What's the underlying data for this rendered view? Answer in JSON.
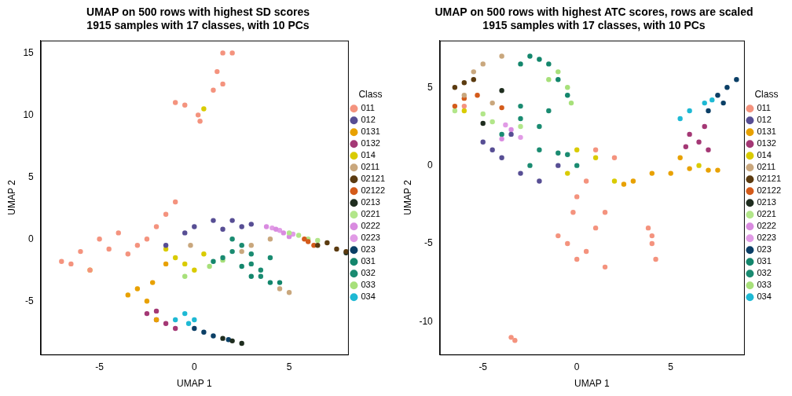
{
  "chart_data": [
    {
      "type": "scatter",
      "title": "UMAP on 500 rows with highest SD scores",
      "subtitle": "1915 samples with 17 classes, with 10 PCs",
      "x_label": "UMAP 1",
      "y_label": "UMAP 2",
      "legend": "right",
      "legend_title": "Class",
      "grid": false,
      "marker": "circle",
      "xlim": [
        -8.1,
        8.1
      ],
      "xticks": [
        -5,
        0,
        5
      ],
      "ylim": [
        -9.3,
        16.0
      ],
      "yticks": [
        -5,
        0,
        5,
        10,
        15
      ],
      "series": [
        {
          "name": "011",
          "color": "#F4937E",
          "values": [
            [
              1.5,
              15
            ],
            [
              2,
              15
            ],
            [
              1.2,
              13.5
            ],
            [
              1.5,
              12.5
            ],
            [
              1,
              12
            ],
            [
              -1,
              11
            ],
            [
              -0.5,
              10.8
            ],
            [
              0.2,
              10
            ],
            [
              0.3,
              9.5
            ],
            [
              -5,
              0
            ],
            [
              -4,
              0.5
            ],
            [
              -3,
              -0.5
            ],
            [
              -4.5,
              -0.8
            ],
            [
              -6,
              -1
            ],
            [
              -7,
              -1.8
            ],
            [
              -6.5,
              -2
            ],
            [
              -5.5,
              -2.5
            ],
            [
              -2,
              1
            ],
            [
              -2.5,
              0
            ],
            [
              -1.5,
              2
            ],
            [
              -1,
              3
            ],
            [
              -3.5,
              -1.2
            ]
          ]
        },
        {
          "name": "012",
          "color": "#574E94",
          "values": [
            [
              0,
              1
            ],
            [
              1,
              1.5
            ],
            [
              2,
              1.5
            ],
            [
              3,
              1.2
            ],
            [
              -0.5,
              0.5
            ],
            [
              1.5,
              0.8
            ],
            [
              2.5,
              1.0
            ],
            [
              -1.5,
              -0.5
            ]
          ]
        },
        {
          "name": "0131",
          "color": "#E8A100",
          "values": [
            [
              -3.5,
              -4.5
            ],
            [
              -3,
              -4
            ],
            [
              -2.5,
              -5
            ],
            [
              -2.2,
              -3.5
            ],
            [
              -1.5,
              -2
            ],
            [
              -2,
              -6.5
            ]
          ]
        },
        {
          "name": "0132",
          "color": "#A43875",
          "values": [
            [
              -2.5,
              -6
            ],
            [
              -2,
              -6.5
            ],
            [
              -1.5,
              -6.8
            ],
            [
              -1,
              -7.2
            ],
            [
              -2,
              -5.8
            ]
          ]
        },
        {
          "name": "014",
          "color": "#D9CB00",
          "values": [
            [
              -1,
              -1.5
            ],
            [
              -0.5,
              -2
            ],
            [
              0,
              -2.5
            ],
            [
              0.5,
              -1.2
            ],
            [
              -1.5,
              -0.8
            ],
            [
              -5.5,
              -2.5
            ],
            [
              0.5,
              10.5
            ]
          ]
        },
        {
          "name": "0211",
          "color": "#C9A77D",
          "values": [
            [
              4,
              0
            ],
            [
              3,
              -0.5
            ],
            [
              5,
              -4.3
            ],
            [
              4.5,
              -4
            ],
            [
              2.5,
              -1
            ],
            [
              -0.2,
              -0.5
            ]
          ]
        },
        {
          "name": "02121",
          "color": "#5B3B10",
          "values": [
            [
              7.5,
              -0.8
            ],
            [
              8,
              -1
            ],
            [
              6.5,
              -0.5
            ],
            [
              7,
              -0.3
            ]
          ]
        },
        {
          "name": "02122",
          "color": "#D45B1A",
          "values": [
            [
              6,
              -0.2
            ],
            [
              6.3,
              -0.5
            ],
            [
              5.8,
              0
            ]
          ]
        },
        {
          "name": "0213",
          "color": "#1F2D1F",
          "values": [
            [
              2,
              -8.2
            ],
            [
              2.5,
              -8.4
            ],
            [
              1.5,
              -8
            ],
            [
              8,
              -1.1
            ]
          ]
        },
        {
          "name": "0221",
          "color": "#B2E68A",
          "values": [
            [
              6,
              0
            ],
            [
              5.5,
              0.3
            ],
            [
              5,
              0.5
            ],
            [
              6.5,
              -0.1
            ]
          ]
        },
        {
          "name": "0222",
          "color": "#D98BE0",
          "values": [
            [
              4.3,
              0.8
            ],
            [
              4.7,
              0.5
            ],
            [
              3.8,
              1
            ],
            [
              5,
              0.2
            ]
          ]
        },
        {
          "name": "0223",
          "color": "#E19BE6",
          "values": [
            [
              4.1,
              0.9
            ],
            [
              4.5,
              0.7
            ],
            [
              5.2,
              0.4
            ]
          ]
        },
        {
          "name": "023",
          "color": "#0B3F66",
          "values": [
            [
              0.5,
              -7.5
            ],
            [
              1,
              -7.8
            ],
            [
              0,
              -7.2
            ],
            [
              1.8,
              -8.1
            ]
          ]
        },
        {
          "name": "031",
          "color": "#13866C",
          "values": [
            [
              3,
              -3
            ],
            [
              4,
              -3.5
            ],
            [
              2.5,
              -2.2
            ],
            [
              4.5,
              -3.5
            ],
            [
              1,
              -1.8
            ]
          ]
        },
        {
          "name": "032",
          "color": "#1A8B71",
          "values": [
            [
              3.5,
              -2.5
            ],
            [
              4,
              -1.5
            ],
            [
              2,
              0
            ],
            [
              3,
              -1.2
            ],
            [
              2,
              -1
            ],
            [
              3,
              -2
            ],
            [
              3.5,
              -3
            ],
            [
              1.5,
              -1.5
            ],
            [
              2.5,
              -0.5
            ]
          ]
        },
        {
          "name": "033",
          "color": "#A7E07A",
          "values": [
            [
              1.5,
              -1.7
            ],
            [
              0.8,
              -2.2
            ],
            [
              -0.5,
              -3
            ]
          ]
        },
        {
          "name": "034",
          "color": "#1EB9D4",
          "values": [
            [
              -0.5,
              -6
            ],
            [
              -1,
              -6.5
            ],
            [
              0,
              -6.5
            ],
            [
              -0.3,
              -6.8
            ]
          ]
        }
      ]
    },
    {
      "type": "scatter",
      "title": "UMAP on 500 rows with highest ATC scores, rows are scaled",
      "subtitle": "1915 samples with 17 classes, with 10 PCs",
      "x_label": "UMAP 1",
      "y_label": "UMAP 2",
      "legend": "right",
      "legend_title": "Class",
      "grid": false,
      "marker": "circle",
      "xlim": [
        -7.3,
        8.9
      ],
      "xticks": [
        -5,
        0,
        5
      ],
      "ylim": [
        -12.1,
        8.0
      ],
      "yticks": [
        -10,
        -5,
        0,
        5
      ],
      "series": [
        {
          "name": "011",
          "color": "#F4937E",
          "values": [
            [
              -3.5,
              -11
            ],
            [
              -3.3,
              -11.2
            ],
            [
              0,
              -6
            ],
            [
              0.5,
              -5.5
            ],
            [
              -0.5,
              -5
            ],
            [
              1,
              -4
            ],
            [
              -0.2,
              -3
            ],
            [
              0,
              -2
            ],
            [
              4,
              -5
            ],
            [
              4.2,
              -6
            ],
            [
              3.8,
              -4
            ],
            [
              1.5,
              -6.5
            ],
            [
              -1,
              -4.5
            ],
            [
              0.5,
              -1
            ],
            [
              2,
              0.5
            ],
            [
              1,
              1
            ],
            [
              4,
              -4.5
            ],
            [
              -6,
              3.8
            ],
            [
              1.5,
              -3
            ]
          ]
        },
        {
          "name": "012",
          "color": "#574E94",
          "values": [
            [
              -5,
              1.5
            ],
            [
              -4,
              0.5
            ],
            [
              -3,
              -0.5
            ],
            [
              -2,
              -1
            ],
            [
              -1,
              0
            ],
            [
              -4.5,
              1
            ],
            [
              -3.5,
              2
            ]
          ]
        },
        {
          "name": "0131",
          "color": "#E8A100",
          "values": [
            [
              3,
              -1
            ],
            [
              4,
              -0.5
            ],
            [
              5,
              -0.5
            ],
            [
              6,
              -0.2
            ],
            [
              7,
              -0.3
            ],
            [
              7.5,
              -0.3
            ],
            [
              5.5,
              0.5
            ],
            [
              2.5,
              -1.2
            ]
          ]
        },
        {
          "name": "0132",
          "color": "#A43875",
          "values": [
            [
              6,
              2
            ],
            [
              6.5,
              1.5
            ],
            [
              7,
              1
            ],
            [
              6.8,
              2.5
            ],
            [
              5.8,
              1.2
            ]
          ]
        },
        {
          "name": "014",
          "color": "#D9CB00",
          "values": [
            [
              -0.5,
              -0.5
            ],
            [
              1,
              0.5
            ],
            [
              2,
              -1
            ],
            [
              0,
              1
            ],
            [
              -6,
              3.5
            ],
            [
              6.5,
              0
            ]
          ]
        },
        {
          "name": "0211",
          "color": "#C9A77D",
          "values": [
            [
              -5,
              6.5
            ],
            [
              -4,
              7
            ],
            [
              -6,
              4.5
            ],
            [
              -5.5,
              6
            ],
            [
              -4.5,
              4
            ]
          ]
        },
        {
          "name": "02121",
          "color": "#5B3B10",
          "values": [
            [
              -6,
              5.3
            ],
            [
              -6.5,
              5
            ],
            [
              -5.5,
              5.5
            ]
          ]
        },
        {
          "name": "02122",
          "color": "#D45B1A",
          "values": [
            [
              -6,
              4.3
            ],
            [
              -6.5,
              3.8
            ],
            [
              -5.3,
              4.5
            ],
            [
              -4,
              3.7
            ]
          ]
        },
        {
          "name": "0213",
          "color": "#1F2D1F",
          "values": [
            [
              -4,
              4.8
            ],
            [
              -5,
              2.7
            ]
          ]
        },
        {
          "name": "0221",
          "color": "#B2E68A",
          "values": [
            [
              -6.5,
              3.5
            ],
            [
              -5,
              3.3
            ],
            [
              -4.5,
              2.8
            ],
            [
              -3,
              2.5
            ]
          ]
        },
        {
          "name": "0222",
          "color": "#D98BE0",
          "values": [
            [
              -3.5,
              2.3
            ],
            [
              -4,
              1.7
            ]
          ]
        },
        {
          "name": "0223",
          "color": "#E19BE6",
          "values": [
            [
              -3,
              1.8
            ],
            [
              -3.8,
              2.6
            ]
          ]
        },
        {
          "name": "023",
          "color": "#0B3F66",
          "values": [
            [
              8,
              5
            ],
            [
              7.5,
              4.5
            ],
            [
              8.5,
              5.5
            ],
            [
              7,
              3.5
            ],
            [
              7.8,
              4
            ]
          ]
        },
        {
          "name": "031",
          "color": "#13866C",
          "values": [
            [
              -3,
              6.5
            ],
            [
              -2.5,
              7
            ],
            [
              -1.5,
              6.5
            ],
            [
              -1,
              5.5
            ],
            [
              -2,
              6.8
            ],
            [
              -0.5,
              4.5
            ]
          ]
        },
        {
          "name": "032",
          "color": "#1A8B71",
          "values": [
            [
              -1.5,
              3.5
            ],
            [
              -2,
              2.5
            ],
            [
              -0.5,
              0.7
            ],
            [
              0,
              0
            ],
            [
              -4,
              2
            ],
            [
              -3,
              3
            ],
            [
              -2,
              1
            ],
            [
              -1,
              0.8
            ],
            [
              -3,
              3.8
            ],
            [
              -2.5,
              0
            ]
          ]
        },
        {
          "name": "033",
          "color": "#A7E07A",
          "values": [
            [
              -1,
              6
            ],
            [
              -0.5,
              5
            ],
            [
              -0.3,
              4
            ],
            [
              -1.5,
              5.5
            ]
          ]
        },
        {
          "name": "034",
          "color": "#1EB9D4",
          "values": [
            [
              5.5,
              3
            ],
            [
              6,
              3.5
            ],
            [
              6.8,
              4
            ],
            [
              7.2,
              4.2
            ]
          ]
        }
      ]
    }
  ]
}
